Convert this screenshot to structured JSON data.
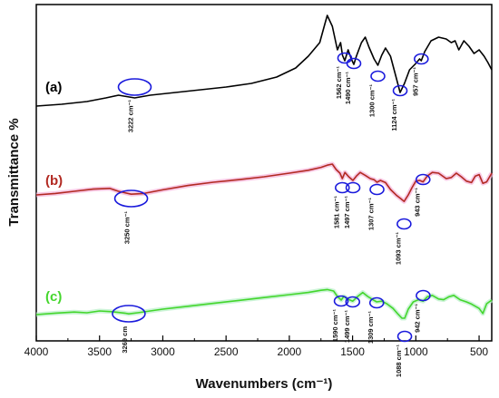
{
  "chart_data": {
    "type": "line",
    "title": "",
    "xlabel": "Wavenumbers (cm⁻¹)",
    "ylabel": "Transmittance %",
    "xlim": [
      4000,
      400
    ],
    "x_reversed": true,
    "x_ticks": [
      4000,
      3500,
      3000,
      2500,
      2000,
      1500,
      1000,
      500
    ],
    "y_ticks_shown": false,
    "grid": false,
    "legend": "none",
    "series": [
      {
        "name": "(a)",
        "color": "#000000",
        "points": [
          [
            4000,
            0.0
          ],
          [
            3800,
            0.02
          ],
          [
            3600,
            0.05
          ],
          [
            3450,
            0.09
          ],
          [
            3350,
            0.12
          ],
          [
            3222,
            0.09
          ],
          [
            3100,
            0.12
          ],
          [
            2900,
            0.15
          ],
          [
            2700,
            0.18
          ],
          [
            2500,
            0.21
          ],
          [
            2300,
            0.25
          ],
          [
            2100,
            0.32
          ],
          [
            1950,
            0.42
          ],
          [
            1850,
            0.55
          ],
          [
            1760,
            0.7
          ],
          [
            1720,
            0.9
          ],
          [
            1700,
            1.0
          ],
          [
            1660,
            0.88
          ],
          [
            1620,
            0.62
          ],
          [
            1595,
            0.7
          ],
          [
            1580,
            0.56
          ],
          [
            1562,
            0.5
          ],
          [
            1535,
            0.62
          ],
          [
            1510,
            0.52
          ],
          [
            1490,
            0.46
          ],
          [
            1470,
            0.55
          ],
          [
            1430,
            0.7
          ],
          [
            1400,
            0.76
          ],
          [
            1370,
            0.65
          ],
          [
            1330,
            0.52
          ],
          [
            1300,
            0.45
          ],
          [
            1270,
            0.56
          ],
          [
            1240,
            0.64
          ],
          [
            1200,
            0.55
          ],
          [
            1160,
            0.34
          ],
          [
            1124,
            0.15
          ],
          [
            1090,
            0.25
          ],
          [
            1050,
            0.4
          ],
          [
            1000,
            0.47
          ],
          [
            970,
            0.52
          ],
          [
            957,
            0.5
          ],
          [
            930,
            0.6
          ],
          [
            880,
            0.72
          ],
          [
            820,
            0.76
          ],
          [
            760,
            0.74
          ],
          [
            720,
            0.7
          ],
          [
            690,
            0.72
          ],
          [
            660,
            0.62
          ],
          [
            620,
            0.72
          ],
          [
            580,
            0.66
          ],
          [
            540,
            0.58
          ],
          [
            500,
            0.62
          ],
          [
            460,
            0.55
          ],
          [
            430,
            0.48
          ],
          [
            400,
            0.4
          ]
        ]
      },
      {
        "name": "(b)",
        "color": "#b22a22",
        "points": [
          [
            4000,
            0.1
          ],
          [
            3850,
            0.14
          ],
          [
            3700,
            0.2
          ],
          [
            3550,
            0.26
          ],
          [
            3420,
            0.28
          ],
          [
            3350,
            0.2
          ],
          [
            3250,
            0.12
          ],
          [
            3150,
            0.14
          ],
          [
            3000,
            0.24
          ],
          [
            2800,
            0.36
          ],
          [
            2600,
            0.45
          ],
          [
            2400,
            0.52
          ],
          [
            2200,
            0.6
          ],
          [
            2000,
            0.7
          ],
          [
            1850,
            0.78
          ],
          [
            1750,
            0.86
          ],
          [
            1700,
            0.92
          ],
          [
            1660,
            0.95
          ],
          [
            1630,
            0.8
          ],
          [
            1600,
            0.7
          ],
          [
            1581,
            0.55
          ],
          [
            1560,
            0.72
          ],
          [
            1530,
            0.6
          ],
          [
            1497,
            0.5
          ],
          [
            1470,
            0.62
          ],
          [
            1440,
            0.72
          ],
          [
            1400,
            0.64
          ],
          [
            1360,
            0.55
          ],
          [
            1330,
            0.52
          ],
          [
            1307,
            0.45
          ],
          [
            1280,
            0.5
          ],
          [
            1240,
            0.44
          ],
          [
            1200,
            0.25
          ],
          [
            1150,
            0.08
          ],
          [
            1120,
            0.0
          ],
          [
            1093,
            -0.08
          ],
          [
            1060,
            0.1
          ],
          [
            1030,
            0.3
          ],
          [
            1000,
            0.48
          ],
          [
            970,
            0.5
          ],
          [
            943,
            0.46
          ],
          [
            910,
            0.62
          ],
          [
            870,
            0.72
          ],
          [
            820,
            0.7
          ],
          [
            760,
            0.55
          ],
          [
            720,
            0.58
          ],
          [
            680,
            0.7
          ],
          [
            640,
            0.6
          ],
          [
            600,
            0.48
          ],
          [
            560,
            0.44
          ],
          [
            530,
            0.62
          ],
          [
            500,
            0.66
          ],
          [
            470,
            0.42
          ],
          [
            440,
            0.46
          ],
          [
            400,
            0.7
          ]
        ]
      },
      {
        "name": "(c)",
        "color": "#44d62c",
        "points": [
          [
            4000,
            0.05
          ],
          [
            3850,
            0.09
          ],
          [
            3700,
            0.12
          ],
          [
            3600,
            0.1
          ],
          [
            3500,
            0.15
          ],
          [
            3400,
            0.13
          ],
          [
            3300,
            0.09
          ],
          [
            3269,
            0.07
          ],
          [
            3200,
            0.1
          ],
          [
            3100,
            0.15
          ],
          [
            3000,
            0.2
          ],
          [
            2800,
            0.28
          ],
          [
            2600,
            0.36
          ],
          [
            2400,
            0.44
          ],
          [
            2200,
            0.52
          ],
          [
            2000,
            0.6
          ],
          [
            1850,
            0.66
          ],
          [
            1750,
            0.72
          ],
          [
            1700,
            0.74
          ],
          [
            1650,
            0.7
          ],
          [
            1620,
            0.55
          ],
          [
            1590,
            0.45
          ],
          [
            1570,
            0.55
          ],
          [
            1540,
            0.48
          ],
          [
            1499,
            0.42
          ],
          [
            1460,
            0.55
          ],
          [
            1420,
            0.66
          ],
          [
            1380,
            0.55
          ],
          [
            1340,
            0.46
          ],
          [
            1309,
            0.4
          ],
          [
            1270,
            0.42
          ],
          [
            1230,
            0.35
          ],
          [
            1180,
            0.22
          ],
          [
            1140,
            0.06
          ],
          [
            1110,
            -0.05
          ],
          [
            1088,
            -0.05
          ],
          [
            1060,
            0.2
          ],
          [
            1020,
            0.4
          ],
          [
            980,
            0.46
          ],
          [
            942,
            0.42
          ],
          [
            910,
            0.54
          ],
          [
            870,
            0.58
          ],
          [
            820,
            0.48
          ],
          [
            780,
            0.46
          ],
          [
            740,
            0.54
          ],
          [
            700,
            0.58
          ],
          [
            650,
            0.46
          ],
          [
            600,
            0.4
          ],
          [
            560,
            0.34
          ],
          [
            530,
            0.28
          ],
          [
            500,
            0.22
          ],
          [
            470,
            0.08
          ],
          [
            440,
            0.35
          ],
          [
            400,
            0.45
          ]
        ]
      }
    ],
    "annotations": {
      "a": [
        "3222 cm⁻¹",
        "1562 cm⁻¹",
        "1490 cm⁻¹",
        "1300 cm⁻¹",
        "1124 cm⁻¹",
        "957 cm⁻¹"
      ],
      "b": [
        "3250 cm⁻¹",
        "1581 cm⁻¹",
        "1497 cm⁻¹",
        "1307 cm⁻¹",
        "1093 cm⁻¹",
        "943 cm⁻¹"
      ],
      "c": [
        "3269 cm",
        "1590 cm⁻¹",
        "1499 cm⁻¹",
        "1309 cm⁻¹",
        "1088 cm⁻¹",
        "942 cm⁻¹"
      ]
    },
    "annotation_color": "#1a1adc"
  }
}
